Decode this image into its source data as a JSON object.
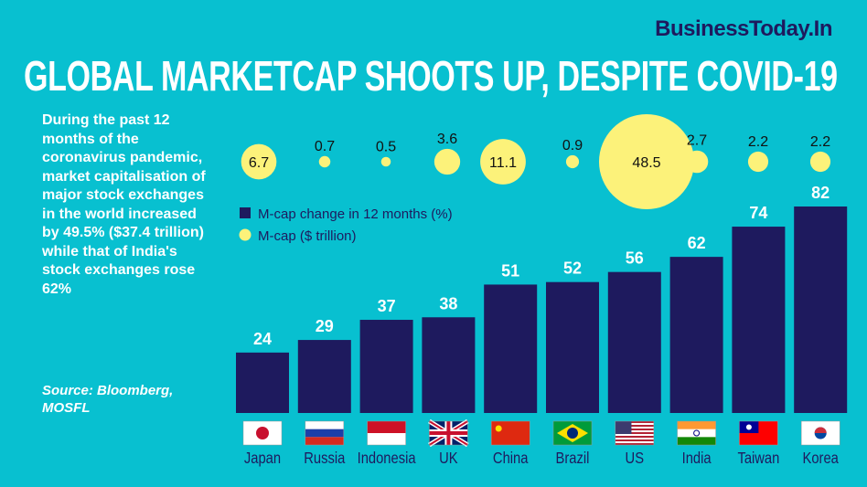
{
  "brand": "BusinessToday.In",
  "title": "GLOBAL MARKETCAP SHOOTS UP, DESPITE COVID-19",
  "description": "During the past 12 months of the coronavirus pandemic, market capitalisation of major stock exchanges in the world increased by 49.5% ($37.4 trillion) while that of India's stock exchanges rose 62%",
  "source": "Source: Bloomberg, MOSFL",
  "colors": {
    "background": "#08c0d0",
    "bar": "#1e1a5e",
    "bubble": "#fcf27a"
  },
  "chart_data": {
    "type": "bar",
    "categories": [
      "Japan",
      "Russia",
      "Indonesia",
      "UK",
      "China",
      "Brazil",
      "US",
      "India",
      "Taiwan",
      "Korea"
    ],
    "series": [
      {
        "name": "M-cap change in 12 months (%)",
        "type": "bar",
        "values": [
          24,
          29,
          37,
          38,
          51,
          52,
          56,
          62,
          74,
          82
        ]
      },
      {
        "name": "M-cap ($ trillion)",
        "type": "bubble",
        "values": [
          6.7,
          0.7,
          0.5,
          3.6,
          11.1,
          0.9,
          48.5,
          2.7,
          2.2,
          2.2
        ]
      }
    ],
    "legend": "top-left of plot",
    "grid": false,
    "category_icons": [
      "flag-japan",
      "flag-russia",
      "flag-indonesia",
      "flag-uk",
      "flag-china",
      "flag-brazil",
      "flag-us",
      "flag-india",
      "flag-taiwan",
      "flag-korea"
    ]
  }
}
